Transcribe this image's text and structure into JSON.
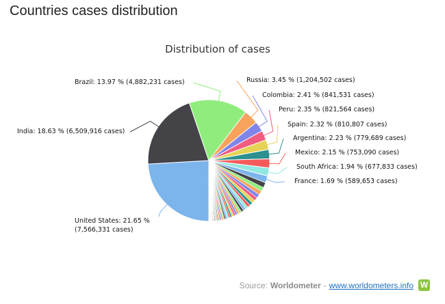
{
  "page": {
    "title": "Countries cases distribution"
  },
  "source": {
    "prefix": "Source:",
    "name": "Worldometer",
    "separator": "-",
    "link": "www.worldometers.info",
    "logo_letter": "W"
  },
  "chart_data": {
    "type": "pie",
    "title": "Distribution of cases",
    "slices": [
      {
        "country": "United States",
        "pct": 21.65,
        "cases": "7,566,331",
        "label": "United States: 21.65 %",
        "label2": "(7,566,331 cases)",
        "color": "#7cb5ec"
      },
      {
        "country": "India",
        "pct": 18.63,
        "cases": "6,509,916",
        "label": "India: 18.63 % (6,509,916 cases)",
        "color": "#434348"
      },
      {
        "country": "Brazil",
        "pct": 13.97,
        "cases": "4,882,231",
        "label": "Brazil: 13.97 % (4,882,231 cases)",
        "color": "#90ed7d"
      },
      {
        "country": "Russia",
        "pct": 3.45,
        "cases": "1,204,502",
        "label": "Russia: 3.45 % (1,204,502 cases)",
        "color": "#f7a35c"
      },
      {
        "country": "Colombia",
        "pct": 2.41,
        "cases": "841,531",
        "label": "Colombia: 2.41 % (841,531 cases)",
        "color": "#8085e9"
      },
      {
        "country": "Peru",
        "pct": 2.35,
        "cases": "821,564",
        "label": "Peru: 2.35 % (821,564 cases)",
        "color": "#f15c80"
      },
      {
        "country": "Spain",
        "pct": 2.32,
        "cases": "810,807",
        "label": "Spain: 2.32 % (810,807 cases)",
        "color": "#e4d354"
      },
      {
        "country": "Argentina",
        "pct": 2.23,
        "cases": "779,689",
        "label": "Argentina: 2.23 % (779,689 cases)",
        "color": "#2b908f"
      },
      {
        "country": "Mexico",
        "pct": 2.15,
        "cases": "753,090",
        "label": "Mexico: 2.15 % (753,090 cases)",
        "color": "#f45b5b"
      },
      {
        "country": "South Africa",
        "pct": 1.94,
        "cases": "677,833",
        "label": "South Africa: 1.94 % (677,833 cases)",
        "color": "#91e8e1"
      },
      {
        "country": "France",
        "pct": 1.69,
        "cases": "589,653",
        "label": "France: 1.69 % (589,653 cases)",
        "color": "#7cb5ec"
      }
    ],
    "other_slices": [
      1.2,
      1.0,
      0.95,
      0.9,
      0.85,
      0.8,
      0.75,
      0.7,
      0.65,
      0.6,
      0.58,
      0.55,
      0.52,
      0.5,
      0.48,
      0.45,
      0.42,
      0.4,
      0.38,
      0.36,
      0.34,
      0.32,
      0.3,
      0.28,
      0.26,
      0.24,
      0.22,
      0.2,
      0.19,
      0.18,
      0.17,
      0.16,
      0.15,
      0.14,
      0.13,
      0.12,
      0.11,
      0.1,
      0.09,
      0.08,
      0.07,
      0.06,
      0.05,
      0.04,
      0.03,
      0.02
    ],
    "palette": [
      "#7cb5ec",
      "#434348",
      "#90ed7d",
      "#f7a35c",
      "#8085e9",
      "#f15c80",
      "#e4d354",
      "#2b908f",
      "#f45b5b",
      "#91e8e1"
    ]
  }
}
